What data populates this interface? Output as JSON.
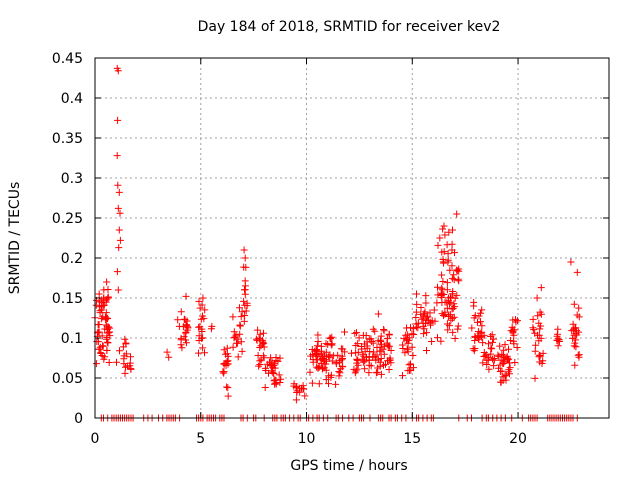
{
  "chart_data": {
    "type": "scatter",
    "title": "Day 184 of 2018, SRMTID for receiver kev2",
    "xlabel": "GPS time / hours",
    "ylabel": "SRMTID / TECUs",
    "xlim": [
      0,
      24.3
    ],
    "ylim": [
      0,
      0.45
    ],
    "xticks": [
      0,
      5,
      10,
      15,
      20
    ],
    "xtick_labels": [
      "0",
      "5",
      "10",
      "15",
      "20"
    ],
    "yticks": [
      0,
      0.05,
      0.1,
      0.15,
      0.2,
      0.25,
      0.3,
      0.35,
      0.4,
      0.45
    ],
    "ytick_labels": [
      "0",
      "0.05",
      "0.1",
      "0.15",
      "0.2",
      "0.25",
      "0.3",
      "0.35",
      "0.4",
      "0.45"
    ],
    "grid": true,
    "marker": "+",
    "color": "#ff0000",
    "series": [
      {
        "name": "SRMTID",
        "clusters": [
          {
            "x": [
              0.0,
              0.7
            ],
            "y": [
              0.06,
              0.16
            ],
            "n": 60
          },
          {
            "x": [
              0.3,
              0.7
            ],
            "y": [
              0.13,
              0.17
            ],
            "n": 8
          },
          {
            "x": [
              1.0,
              1.5
            ],
            "y": [
              0.04,
              0.12
            ],
            "n": 12
          },
          {
            "x": [
              1.5,
              1.7
            ],
            "y": [
              0.05,
              0.08
            ],
            "n": 6
          },
          {
            "x": [
              3.4,
              3.5
            ],
            "y": [
              0.07,
              0.09
            ],
            "n": 2
          },
          {
            "x": [
              3.9,
              4.4
            ],
            "y": [
              0.06,
              0.15
            ],
            "n": 22
          },
          {
            "x": [
              4.8,
              5.2
            ],
            "y": [
              0.06,
              0.15
            ],
            "n": 18
          },
          {
            "x": [
              5.5,
              5.6
            ],
            "y": [
              0.1,
              0.12
            ],
            "n": 2
          },
          {
            "x": [
              6.0,
              6.3
            ],
            "y": [
              0.04,
              0.1
            ],
            "n": 16
          },
          {
            "x": [
              6.2,
              6.3
            ],
            "y": [
              0.02,
              0.04
            ],
            "n": 3
          },
          {
            "x": [
              6.5,
              7.0
            ],
            "y": [
              0.06,
              0.15
            ],
            "n": 18
          },
          {
            "x": [
              7.0,
              7.2
            ],
            "y": [
              0.1,
              0.2
            ],
            "n": 14
          },
          {
            "x": [
              7.6,
              8.0
            ],
            "y": [
              0.05,
              0.12
            ],
            "n": 22
          },
          {
            "x": [
              8.0,
              8.8
            ],
            "y": [
              0.03,
              0.08
            ],
            "n": 32
          },
          {
            "x": [
              9.4,
              10.0
            ],
            "y": [
              0.02,
              0.05
            ],
            "n": 14
          },
          {
            "x": [
              10.1,
              11.2
            ],
            "y": [
              0.03,
              0.11
            ],
            "n": 60
          },
          {
            "x": [
              11.2,
              11.8
            ],
            "y": [
              0.03,
              0.12
            ],
            "n": 22
          },
          {
            "x": [
              12.1,
              13.0
            ],
            "y": [
              0.04,
              0.11
            ],
            "n": 40
          },
          {
            "x": [
              13.0,
              14.0
            ],
            "y": [
              0.04,
              0.12
            ],
            "n": 50
          },
          {
            "x": [
              14.5,
              15.1
            ],
            "y": [
              0.04,
              0.12
            ],
            "n": 28
          },
          {
            "x": [
              15.0,
              15.3
            ],
            "y": [
              0.1,
              0.15
            ],
            "n": 8
          },
          {
            "x": [
              15.4,
              16.0
            ],
            "y": [
              0.07,
              0.16
            ],
            "n": 26
          },
          {
            "x": [
              16.0,
              17.2
            ],
            "y": [
              0.08,
              0.2
            ],
            "n": 60
          },
          {
            "x": [
              16.2,
              17.0
            ],
            "y": [
              0.16,
              0.24
            ],
            "n": 20
          },
          {
            "x": [
              17.8,
              18.3
            ],
            "y": [
              0.06,
              0.15
            ],
            "n": 24
          },
          {
            "x": [
              18.3,
              18.9
            ],
            "y": [
              0.05,
              0.11
            ],
            "n": 24
          },
          {
            "x": [
              19.0,
              19.6
            ],
            "y": [
              0.03,
              0.1
            ],
            "n": 34
          },
          {
            "x": [
              19.6,
              20.0
            ],
            "y": [
              0.05,
              0.13
            ],
            "n": 16
          },
          {
            "x": [
              20.7,
              21.2
            ],
            "y": [
              0.04,
              0.15
            ],
            "n": 24
          },
          {
            "x": [
              21.8,
              22.0
            ],
            "y": [
              0.07,
              0.12
            ],
            "n": 8
          },
          {
            "x": [
              22.5,
              22.9
            ],
            "y": [
              0.05,
              0.15
            ],
            "n": 24
          }
        ],
        "points": [
          [
            1.05,
            0.437
          ],
          [
            1.1,
            0.434
          ],
          [
            1.07,
            0.372
          ],
          [
            1.05,
            0.328
          ],
          [
            1.08,
            0.291
          ],
          [
            1.15,
            0.282
          ],
          [
            1.1,
            0.262
          ],
          [
            1.18,
            0.256
          ],
          [
            1.15,
            0.235
          ],
          [
            1.2,
            0.222
          ],
          [
            1.12,
            0.213
          ],
          [
            1.06,
            0.183
          ],
          [
            1.1,
            0.16
          ],
          [
            0.55,
            0.17
          ],
          [
            0.6,
            0.15
          ],
          [
            0.2,
            0.155
          ],
          [
            17.1,
            0.255
          ],
          [
            16.9,
            0.235
          ],
          [
            16.5,
            0.24
          ],
          [
            16.3,
            0.225
          ],
          [
            22.5,
            0.195
          ],
          [
            22.8,
            0.182
          ],
          [
            21.1,
            0.163
          ],
          [
            4.3,
            0.152
          ],
          [
            5.1,
            0.15
          ],
          [
            7.05,
            0.21
          ],
          [
            7.1,
            0.2
          ],
          [
            13.4,
            0.13
          ],
          [
            15.2,
            0.155
          ],
          [
            17.9,
            0.14
          ],
          [
            19.9,
            0.12
          ],
          [
            20.9,
            0.15
          ]
        ],
        "zero_x": [
          0.3,
          0.4,
          0.6,
          0.8,
          0.9,
          1.0,
          1.1,
          1.2,
          1.3,
          1.4,
          1.5,
          1.6,
          1.7,
          1.8,
          2.3,
          2.5,
          2.7,
          3.0,
          3.2,
          3.4,
          3.5,
          3.6,
          3.7,
          3.8,
          4.0,
          4.8,
          4.9,
          5.0,
          5.1,
          5.3,
          5.4,
          5.5,
          5.6,
          5.7,
          5.9,
          6.0,
          6.1,
          6.9,
          7.0,
          7.2,
          7.5,
          7.6,
          8.0,
          8.4,
          8.5,
          8.6,
          8.8,
          8.9,
          9.0,
          9.2,
          9.4,
          9.6,
          9.7,
          10.0,
          10.1,
          10.3,
          10.5,
          10.6,
          10.8,
          11.0,
          11.4,
          11.5,
          11.7,
          12.0,
          12.2,
          12.5,
          12.6,
          12.7,
          13.0,
          13.4,
          13.5,
          13.6,
          13.9,
          14.0,
          14.2,
          14.3,
          14.5,
          14.7,
          15.0,
          15.2,
          15.3,
          15.5,
          15.7,
          15.9,
          16.0,
          17.2,
          17.6,
          17.8,
          18.3,
          18.5,
          18.6,
          18.8,
          19.0,
          19.2,
          19.4,
          19.7,
          20.2,
          20.5,
          20.6,
          20.7,
          20.8,
          20.9,
          21.4,
          21.5,
          21.6,
          21.7,
          21.8,
          21.9,
          22.0,
          22.1,
          22.2,
          22.3,
          22.4,
          22.5,
          22.6,
          22.8
        ]
      }
    ]
  }
}
